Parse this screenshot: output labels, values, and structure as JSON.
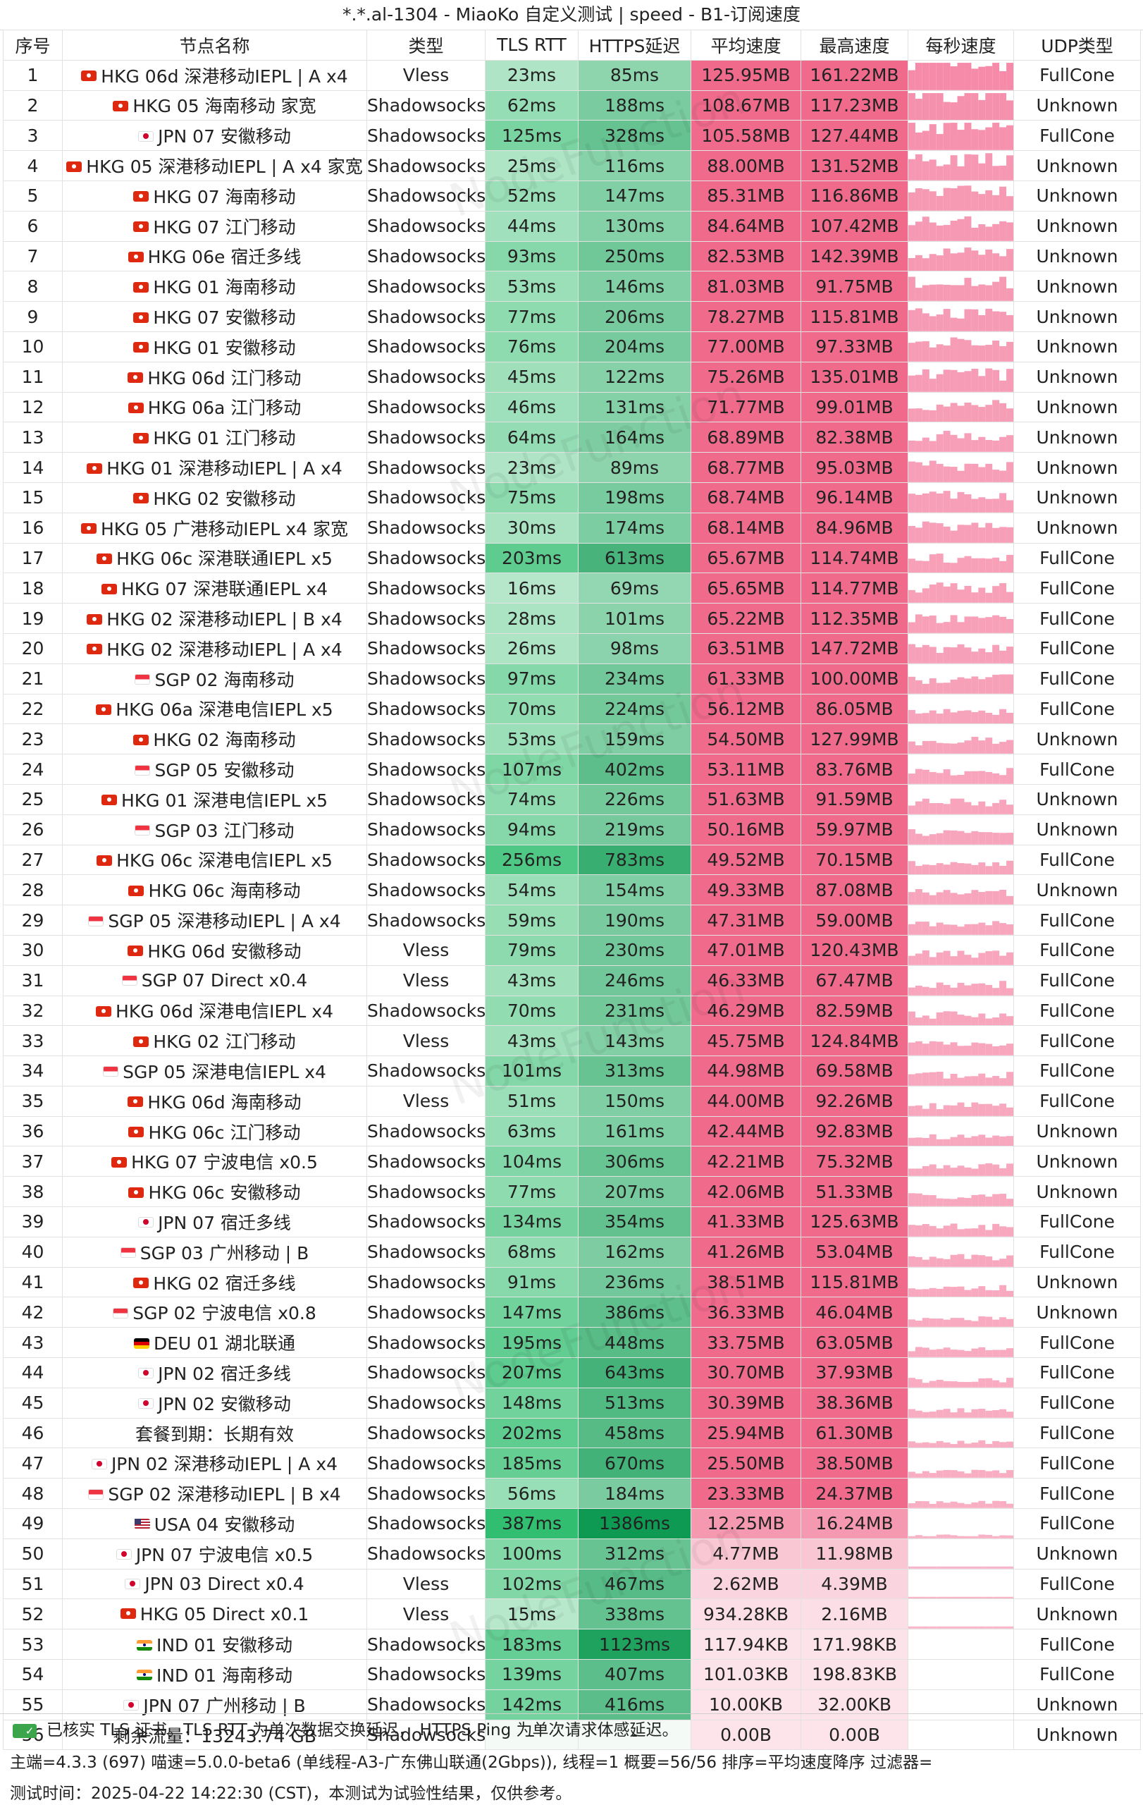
{
  "title": "*.*.al-1304 - MiaoKo 自定义测试 | speed - B1-订阅速度",
  "headers": [
    "序号",
    "节点名称",
    "类型",
    "TLS RTT",
    "HTTPS延迟",
    "平均速度",
    "最高速度",
    "每秒速度",
    "UDP类型"
  ],
  "watermark": "NodeFunction",
  "rows": [
    {
      "idx": "1",
      "flag": "hk",
      "name": "HKG 06d 深港移动IEPL | A x4",
      "type": "Vless",
      "tls": "23ms",
      "https": "85ms",
      "avg": "125.95MB",
      "max": "161.22MB",
      "avg_mb": 125.95,
      "udp": "FullCone"
    },
    {
      "idx": "2",
      "flag": "hk",
      "name": "HKG 05 海南移动 家宽",
      "type": "Shadowsocks",
      "tls": "62ms",
      "https": "188ms",
      "avg": "108.67MB",
      "max": "117.23MB",
      "avg_mb": 108.67,
      "udp": "Unknown"
    },
    {
      "idx": "3",
      "flag": "jp",
      "name": "JPN 07 安徽移动",
      "type": "Shadowsocks",
      "tls": "125ms",
      "https": "328ms",
      "avg": "105.58MB",
      "max": "127.44MB",
      "avg_mb": 105.58,
      "udp": "FullCone"
    },
    {
      "idx": "4",
      "flag": "hk",
      "name": "HKG 05 深港移动IEPL | A x4 家宽",
      "type": "Shadowsocks",
      "tls": "25ms",
      "https": "116ms",
      "avg": "88.00MB",
      "max": "131.52MB",
      "avg_mb": 88.0,
      "udp": "Unknown"
    },
    {
      "idx": "5",
      "flag": "hk",
      "name": "HKG 07 海南移动",
      "type": "Shadowsocks",
      "tls": "52ms",
      "https": "147ms",
      "avg": "85.31MB",
      "max": "116.86MB",
      "avg_mb": 85.31,
      "udp": "Unknown"
    },
    {
      "idx": "6",
      "flag": "hk",
      "name": "HKG 07 江门移动",
      "type": "Shadowsocks",
      "tls": "44ms",
      "https": "130ms",
      "avg": "84.64MB",
      "max": "107.42MB",
      "avg_mb": 84.64,
      "udp": "Unknown"
    },
    {
      "idx": "7",
      "flag": "hk",
      "name": "HKG 06e 宿迁多线",
      "type": "Shadowsocks",
      "tls": "93ms",
      "https": "250ms",
      "avg": "82.53MB",
      "max": "142.39MB",
      "avg_mb": 82.53,
      "udp": "Unknown"
    },
    {
      "idx": "8",
      "flag": "hk",
      "name": "HKG 01 海南移动",
      "type": "Shadowsocks",
      "tls": "53ms",
      "https": "146ms",
      "avg": "81.03MB",
      "max": "91.75MB",
      "avg_mb": 81.03,
      "udp": "Unknown"
    },
    {
      "idx": "9",
      "flag": "hk",
      "name": "HKG 07 安徽移动",
      "type": "Shadowsocks",
      "tls": "77ms",
      "https": "206ms",
      "avg": "78.27MB",
      "max": "115.81MB",
      "avg_mb": 78.27,
      "udp": "Unknown"
    },
    {
      "idx": "10",
      "flag": "hk",
      "name": "HKG 01 安徽移动",
      "type": "Shadowsocks",
      "tls": "76ms",
      "https": "204ms",
      "avg": "77.00MB",
      "max": "97.33MB",
      "avg_mb": 77.0,
      "udp": "Unknown"
    },
    {
      "idx": "11",
      "flag": "hk",
      "name": "HKG 06d 江门移动",
      "type": "Shadowsocks",
      "tls": "45ms",
      "https": "122ms",
      "avg": "75.26MB",
      "max": "135.01MB",
      "avg_mb": 75.26,
      "udp": "Unknown"
    },
    {
      "idx": "12",
      "flag": "hk",
      "name": "HKG 06a 江门移动",
      "type": "Shadowsocks",
      "tls": "46ms",
      "https": "131ms",
      "avg": "71.77MB",
      "max": "99.01MB",
      "avg_mb": 71.77,
      "udp": "Unknown"
    },
    {
      "idx": "13",
      "flag": "hk",
      "name": "HKG 01 江门移动",
      "type": "Shadowsocks",
      "tls": "64ms",
      "https": "164ms",
      "avg": "68.89MB",
      "max": "82.38MB",
      "avg_mb": 68.89,
      "udp": "Unknown"
    },
    {
      "idx": "14",
      "flag": "hk",
      "name": "HKG 01 深港移动IEPL | A x4",
      "type": "Shadowsocks",
      "tls": "23ms",
      "https": "89ms",
      "avg": "68.77MB",
      "max": "95.03MB",
      "avg_mb": 68.77,
      "udp": "Unknown"
    },
    {
      "idx": "15",
      "flag": "hk",
      "name": "HKG 02 安徽移动",
      "type": "Shadowsocks",
      "tls": "75ms",
      "https": "198ms",
      "avg": "68.74MB",
      "max": "96.14MB",
      "avg_mb": 68.74,
      "udp": "Unknown"
    },
    {
      "idx": "16",
      "flag": "hk",
      "name": "HKG 05 广港移动IEPL x4 家宽",
      "type": "Shadowsocks",
      "tls": "30ms",
      "https": "174ms",
      "avg": "68.14MB",
      "max": "84.96MB",
      "avg_mb": 68.14,
      "udp": "Unknown"
    },
    {
      "idx": "17",
      "flag": "hk",
      "name": "HKG 06c 深港联通IEPL x5",
      "type": "Shadowsocks",
      "tls": "203ms",
      "https": "613ms",
      "avg": "65.67MB",
      "max": "114.74MB",
      "avg_mb": 65.67,
      "udp": "FullCone"
    },
    {
      "idx": "18",
      "flag": "hk",
      "name": "HKG 07 深港联通IEPL x4",
      "type": "Shadowsocks",
      "tls": "16ms",
      "https": "69ms",
      "avg": "65.65MB",
      "max": "114.77MB",
      "avg_mb": 65.65,
      "udp": "FullCone"
    },
    {
      "idx": "19",
      "flag": "hk",
      "name": "HKG 02 深港移动IEPL | B x4",
      "type": "Shadowsocks",
      "tls": "28ms",
      "https": "101ms",
      "avg": "65.22MB",
      "max": "112.35MB",
      "avg_mb": 65.22,
      "udp": "FullCone"
    },
    {
      "idx": "20",
      "flag": "hk",
      "name": "HKG 02 深港移动IEPL | A x4",
      "type": "Shadowsocks",
      "tls": "26ms",
      "https": "98ms",
      "avg": "63.51MB",
      "max": "147.72MB",
      "avg_mb": 63.51,
      "udp": "FullCone"
    },
    {
      "idx": "21",
      "flag": "sg",
      "name": "SGP 02 海南移动",
      "type": "Shadowsocks",
      "tls": "97ms",
      "https": "234ms",
      "avg": "61.33MB",
      "max": "100.00MB",
      "avg_mb": 61.33,
      "udp": "FullCone"
    },
    {
      "idx": "22",
      "flag": "hk",
      "name": "HKG 06a 深港电信IEPL x5",
      "type": "Shadowsocks",
      "tls": "70ms",
      "https": "224ms",
      "avg": "56.12MB",
      "max": "86.05MB",
      "avg_mb": 56.12,
      "udp": "FullCone"
    },
    {
      "idx": "23",
      "flag": "hk",
      "name": "HKG 02 海南移动",
      "type": "Shadowsocks",
      "tls": "53ms",
      "https": "159ms",
      "avg": "54.50MB",
      "max": "127.99MB",
      "avg_mb": 54.5,
      "udp": "Unknown"
    },
    {
      "idx": "24",
      "flag": "sg",
      "name": "SGP 05 安徽移动",
      "type": "Shadowsocks",
      "tls": "107ms",
      "https": "402ms",
      "avg": "53.11MB",
      "max": "83.76MB",
      "avg_mb": 53.11,
      "udp": "FullCone"
    },
    {
      "idx": "25",
      "flag": "hk",
      "name": "HKG 01 深港电信IEPL x5",
      "type": "Shadowsocks",
      "tls": "74ms",
      "https": "226ms",
      "avg": "51.63MB",
      "max": "91.59MB",
      "avg_mb": 51.63,
      "udp": "Unknown"
    },
    {
      "idx": "26",
      "flag": "sg",
      "name": "SGP 03 江门移动",
      "type": "Shadowsocks",
      "tls": "94ms",
      "https": "219ms",
      "avg": "50.16MB",
      "max": "59.97MB",
      "avg_mb": 50.16,
      "udp": "Unknown"
    },
    {
      "idx": "27",
      "flag": "hk",
      "name": "HKG 06c 深港电信IEPL x5",
      "type": "Shadowsocks",
      "tls": "256ms",
      "https": "783ms",
      "avg": "49.52MB",
      "max": "70.15MB",
      "avg_mb": 49.52,
      "udp": "FullCone"
    },
    {
      "idx": "28",
      "flag": "hk",
      "name": "HKG 06c 海南移动",
      "type": "Shadowsocks",
      "tls": "54ms",
      "https": "154ms",
      "avg": "49.33MB",
      "max": "87.08MB",
      "avg_mb": 49.33,
      "udp": "Unknown"
    },
    {
      "idx": "29",
      "flag": "sg",
      "name": "SGP 05 深港移动IEPL | A x4",
      "type": "Shadowsocks",
      "tls": "59ms",
      "https": "190ms",
      "avg": "47.31MB",
      "max": "59.00MB",
      "avg_mb": 47.31,
      "udp": "FullCone"
    },
    {
      "idx": "30",
      "flag": "hk",
      "name": "HKG 06d 安徽移动",
      "type": "Vless",
      "tls": "79ms",
      "https": "230ms",
      "avg": "47.01MB",
      "max": "120.43MB",
      "avg_mb": 47.01,
      "udp": "FullCone"
    },
    {
      "idx": "31",
      "flag": "sg",
      "name": "SGP 07 Direct x0.4",
      "type": "Vless",
      "tls": "43ms",
      "https": "246ms",
      "avg": "46.33MB",
      "max": "67.47MB",
      "avg_mb": 46.33,
      "udp": "FullCone"
    },
    {
      "idx": "32",
      "flag": "hk",
      "name": "HKG 06d 深港电信IEPL x4",
      "type": "Shadowsocks",
      "tls": "70ms",
      "https": "231ms",
      "avg": "46.29MB",
      "max": "82.59MB",
      "avg_mb": 46.29,
      "udp": "FullCone"
    },
    {
      "idx": "33",
      "flag": "hk",
      "name": "HKG 02 江门移动",
      "type": "Vless",
      "tls": "43ms",
      "https": "143ms",
      "avg": "45.75MB",
      "max": "124.84MB",
      "avg_mb": 45.75,
      "udp": "FullCone"
    },
    {
      "idx": "34",
      "flag": "sg",
      "name": "SGP 05 深港电信IEPL x4",
      "type": "Shadowsocks",
      "tls": "101ms",
      "https": "313ms",
      "avg": "44.98MB",
      "max": "69.58MB",
      "avg_mb": 44.98,
      "udp": "FullCone"
    },
    {
      "idx": "35",
      "flag": "hk",
      "name": "HKG 06d 海南移动",
      "type": "Vless",
      "tls": "51ms",
      "https": "150ms",
      "avg": "44.00MB",
      "max": "92.26MB",
      "avg_mb": 44.0,
      "udp": "FullCone"
    },
    {
      "idx": "36",
      "flag": "hk",
      "name": "HKG 06c 江门移动",
      "type": "Shadowsocks",
      "tls": "63ms",
      "https": "161ms",
      "avg": "42.44MB",
      "max": "92.83MB",
      "avg_mb": 42.44,
      "udp": "Unknown"
    },
    {
      "idx": "37",
      "flag": "hk",
      "name": "HKG 07 宁波电信 x0.5",
      "type": "Shadowsocks",
      "tls": "104ms",
      "https": "306ms",
      "avg": "42.21MB",
      "max": "75.32MB",
      "avg_mb": 42.21,
      "udp": "Unknown"
    },
    {
      "idx": "38",
      "flag": "hk",
      "name": "HKG 06c 安徽移动",
      "type": "Shadowsocks",
      "tls": "77ms",
      "https": "207ms",
      "avg": "42.06MB",
      "max": "51.33MB",
      "avg_mb": 42.06,
      "udp": "Unknown"
    },
    {
      "idx": "39",
      "flag": "jp",
      "name": "JPN 07 宿迁多线",
      "type": "Shadowsocks",
      "tls": "134ms",
      "https": "354ms",
      "avg": "41.33MB",
      "max": "125.63MB",
      "avg_mb": 41.33,
      "udp": "FullCone"
    },
    {
      "idx": "40",
      "flag": "sg",
      "name": "SGP 03 广州移动 | B",
      "type": "Shadowsocks",
      "tls": "68ms",
      "https": "162ms",
      "avg": "41.26MB",
      "max": "53.04MB",
      "avg_mb": 41.26,
      "udp": "FullCone"
    },
    {
      "idx": "41",
      "flag": "hk",
      "name": "HKG 02 宿迁多线",
      "type": "Shadowsocks",
      "tls": "91ms",
      "https": "236ms",
      "avg": "38.51MB",
      "max": "115.81MB",
      "avg_mb": 38.51,
      "udp": "Unknown"
    },
    {
      "idx": "42",
      "flag": "sg",
      "name": "SGP 02 宁波电信 x0.8",
      "type": "Shadowsocks",
      "tls": "147ms",
      "https": "386ms",
      "avg": "36.33MB",
      "max": "46.04MB",
      "avg_mb": 36.33,
      "udp": "Unknown"
    },
    {
      "idx": "43",
      "flag": "de",
      "name": "DEU 01 湖北联通",
      "type": "Shadowsocks",
      "tls": "195ms",
      "https": "448ms",
      "avg": "33.75MB",
      "max": "63.05MB",
      "avg_mb": 33.75,
      "udp": "FullCone"
    },
    {
      "idx": "44",
      "flag": "jp",
      "name": "JPN 02 宿迁多线",
      "type": "Shadowsocks",
      "tls": "207ms",
      "https": "643ms",
      "avg": "30.70MB",
      "max": "37.93MB",
      "avg_mb": 30.7,
      "udp": "FullCone"
    },
    {
      "idx": "45",
      "flag": "jp",
      "name": "JPN 02 安徽移动",
      "type": "Shadowsocks",
      "tls": "148ms",
      "https": "513ms",
      "avg": "30.39MB",
      "max": "38.36MB",
      "avg_mb": 30.39,
      "udp": "FullCone"
    },
    {
      "idx": "46",
      "flag": "",
      "name": "套餐到期：长期有效",
      "type": "Shadowsocks",
      "tls": "202ms",
      "https": "458ms",
      "avg": "25.94MB",
      "max": "61.30MB",
      "avg_mb": 25.94,
      "udp": "FullCone"
    },
    {
      "idx": "47",
      "flag": "jp",
      "name": "JPN 02 深港移动IEPL | A x4",
      "type": "Shadowsocks",
      "tls": "185ms",
      "https": "670ms",
      "avg": "25.50MB",
      "max": "38.50MB",
      "avg_mb": 25.5,
      "udp": "FullCone"
    },
    {
      "idx": "48",
      "flag": "sg",
      "name": "SGP 02 深港移动IEPL | B x4",
      "type": "Shadowsocks",
      "tls": "56ms",
      "https": "184ms",
      "avg": "23.33MB",
      "max": "24.37MB",
      "avg_mb": 23.33,
      "udp": "FullCone"
    },
    {
      "idx": "49",
      "flag": "us",
      "name": "USA 04 安徽移动",
      "type": "Shadowsocks",
      "tls": "387ms",
      "https": "1386ms",
      "avg": "12.25MB",
      "max": "16.24MB",
      "avg_mb": 12.25,
      "udp": "FullCone"
    },
    {
      "idx": "50",
      "flag": "jp",
      "name": "JPN 07 宁波电信 x0.5",
      "type": "Shadowsocks",
      "tls": "100ms",
      "https": "312ms",
      "avg": "4.77MB",
      "max": "11.98MB",
      "avg_mb": 4.77,
      "udp": "Unknown"
    },
    {
      "idx": "51",
      "flag": "jp",
      "name": "JPN 03 Direct x0.4",
      "type": "Vless",
      "tls": "102ms",
      "https": "467ms",
      "avg": "2.62MB",
      "max": "4.39MB",
      "avg_mb": 2.62,
      "udp": "FullCone"
    },
    {
      "idx": "52",
      "flag": "hk",
      "name": "HKG 05 Direct x0.1",
      "type": "Vless",
      "tls": "15ms",
      "https": "338ms",
      "avg": "934.28KB",
      "max": "2.16MB",
      "avg_mb": 0.91,
      "udp": "Unknown"
    },
    {
      "idx": "53",
      "flag": "in",
      "name": "IND 01 安徽移动",
      "type": "Shadowsocks",
      "tls": "183ms",
      "https": "1123ms",
      "avg": "117.94KB",
      "max": "171.98KB",
      "avg_mb": 0.12,
      "udp": "FullCone"
    },
    {
      "idx": "54",
      "flag": "in",
      "name": "IND 01 海南移动",
      "type": "Shadowsocks",
      "tls": "139ms",
      "https": "407ms",
      "avg": "101.03KB",
      "max": "198.83KB",
      "avg_mb": 0.1,
      "udp": "FullCone"
    },
    {
      "idx": "55",
      "flag": "jp",
      "name": "JPN 07 广州移动 | B",
      "type": "Shadowsocks",
      "tls": "142ms",
      "https": "416ms",
      "avg": "10.00KB",
      "max": "32.00KB",
      "avg_mb": 0.01,
      "udp": "Unknown"
    },
    {
      "idx": "56",
      "flag": "",
      "name": "剩余流量：13243.74 GB",
      "type": "Shadowsocks",
      "tls": "-",
      "https": "-",
      "avg": "0.00B",
      "max": "0.00B",
      "avg_mb": 0,
      "udp": "Unknown"
    }
  ],
  "footer": {
    "line1": "已核实 TLS 证书。TLS RTT 为单次数据交换延迟， HTTPS Ping 为单次请求体感延迟。",
    "line2": "主端=4.3.3 (697) 喵速=5.0.0-beta6 (单线程-A3-广东佛山联通(2Gbps)), 线程=1 概要=56/56 排序=平均速度降序 过滤器=",
    "line3": "测试时间：2025-04-22 14:22:30 (CST)，本测试为试验性结果，仅供参考。"
  },
  "colors": {
    "tls_low": "#d8f2e2",
    "tls_high": "#2ebd6e",
    "https_low": "#b8e8cc",
    "https_high": "#0e9a52",
    "speed_low": "#fce4ea",
    "speed_high": "#f06a8c",
    "spark": "#f58aa8"
  }
}
